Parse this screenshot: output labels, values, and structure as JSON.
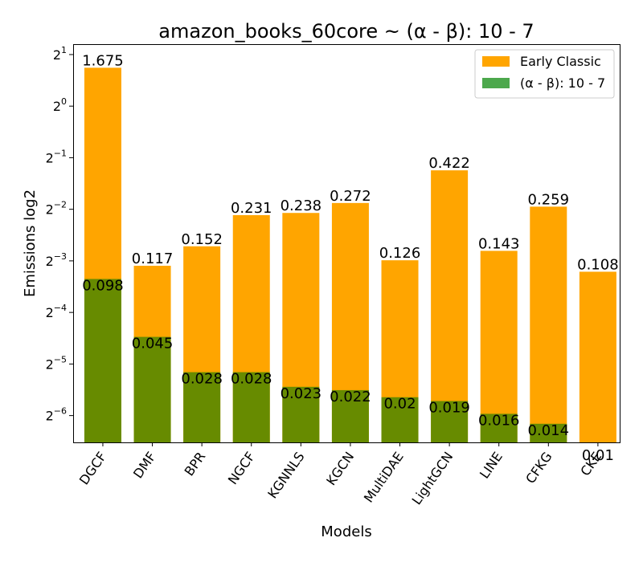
{
  "chart_data": {
    "type": "bar",
    "title": "amazon_books_60core ~ (α - β): 10 - 7",
    "xlabel": "Models",
    "ylabel": "Emissions log2",
    "y_scale": "log2",
    "ylim": [
      0.0109,
      2.3
    ],
    "y_ticks": [
      {
        "base": "2",
        "exp": "1",
        "value": 2
      },
      {
        "base": "2",
        "exp": "0",
        "value": 1
      },
      {
        "base": "2",
        "exp": "−1",
        "value": 0.5
      },
      {
        "base": "2",
        "exp": "−2",
        "value": 0.25
      },
      {
        "base": "2",
        "exp": "−3",
        "value": 0.125
      },
      {
        "base": "2",
        "exp": "−4",
        "value": 0.0625
      },
      {
        "base": "2",
        "exp": "−5",
        "value": 0.03125
      },
      {
        "base": "2",
        "exp": "−6",
        "value": 0.015625
      }
    ],
    "categories": [
      "DGCF",
      "DMF",
      "BPR",
      "NGCF",
      "KGNNLS",
      "KGCN",
      "MultiDAE",
      "LightGCN",
      "LINE",
      "CFKG",
      "CKE"
    ],
    "series": [
      {
        "name": "Early Classic",
        "color": "#FFA500",
        "values": [
          1.675,
          0.117,
          0.152,
          0.231,
          0.238,
          0.272,
          0.126,
          0.422,
          0.143,
          0.259,
          0.108
        ],
        "labels": [
          "1.675",
          "0.117",
          "0.152",
          "0.231",
          "0.238",
          "0.272",
          "0.126",
          "0.422",
          "0.143",
          "0.259",
          "0.108"
        ]
      },
      {
        "name": "(α - β): 10 - 7",
        "color": "#4CA84C",
        "overlap_color": "#678B00",
        "values": [
          0.098,
          0.045,
          0.028,
          0.028,
          0.023,
          0.022,
          0.02,
          0.019,
          0.016,
          0.014,
          0.01
        ],
        "labels": [
          "0.098",
          "0.045",
          "0.028",
          "0.028",
          "0.023",
          "0.022",
          "0.02",
          "0.019",
          "0.016",
          "0.014",
          "0.01"
        ]
      }
    ],
    "legend_position": "top-right",
    "grid": false
  }
}
